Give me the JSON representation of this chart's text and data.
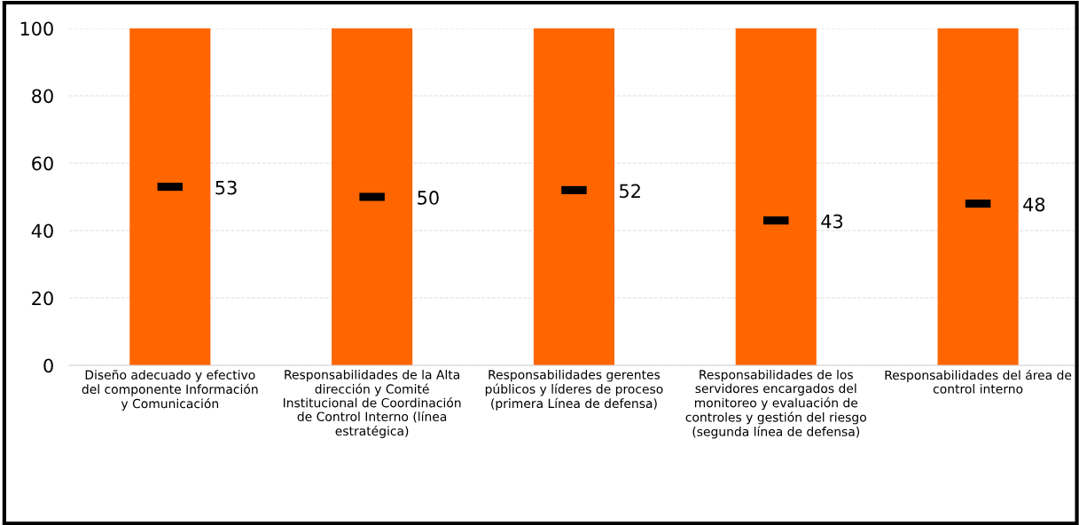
{
  "chart_data": {
    "type": "bar",
    "categories": [
      "Diseño adecuado y efectivo\ndel componente Información\ny Comunicación",
      "Responsabilidades de la Alta\ndirección y Comité\nInstitucional de Coordinación\nde Control Interno (línea\nestratégica)",
      "Responsabilidades gerentes\npúblicos y líderes de proceso\n(primera Línea de defensa)",
      "Responsabilidades de los\nservidores encargados del\nmonitoreo y evaluación de\ncontroles y gestión del riesgo\n(segunda línea de defensa)",
      "Responsabilidades del área de\ncontrol interno"
    ],
    "series": [
      {
        "color": "#ff6600",
        "values": [
          100,
          100,
          100,
          100,
          100
        ]
      },
      {
        "type": "scatter",
        "color": "#000000",
        "values": [
          53,
          50,
          52,
          43,
          48
        ],
        "value_labels": [
          "53",
          "50",
          "52",
          "43",
          "48"
        ]
      }
    ],
    "ylim": [
      0,
      100
    ],
    "yticks": [
      0,
      20,
      40,
      60,
      80,
      100
    ],
    "grid": "y"
  }
}
